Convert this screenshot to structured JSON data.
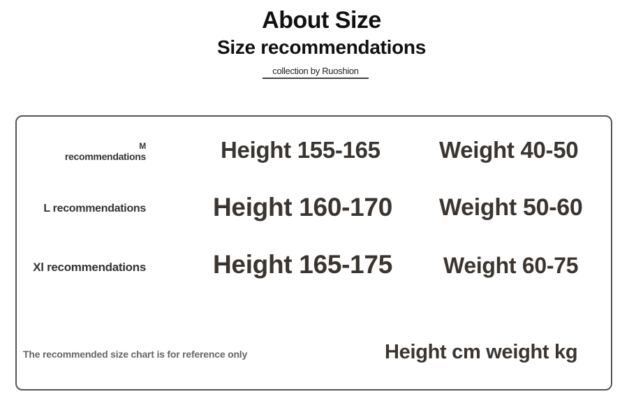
{
  "header": {
    "title": "About Size",
    "subtitle": "Size recommendations",
    "credit": "collection by Ruoshion"
  },
  "sizes": [
    {
      "label_size": "M",
      "label_text": "recommendations",
      "height": "Height 155-165",
      "weight": "Weight 40-50"
    },
    {
      "label": "L recommendations",
      "height": "Height 160-170",
      "weight": "Weight 50-60"
    },
    {
      "label": "Xl recommendations",
      "height": "Height 165-175",
      "weight": "Weight 60-75"
    }
  ],
  "footer": {
    "note": "The recommended size chart is for reference only",
    "units": "Height cm weight kg"
  },
  "colors": {
    "text": "#3a3530",
    "border": "#555555"
  }
}
